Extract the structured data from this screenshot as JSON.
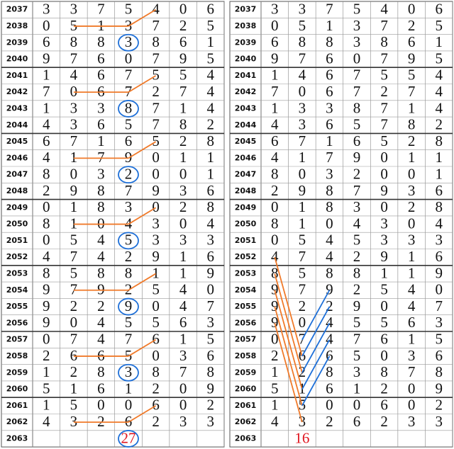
{
  "left": {
    "rows": [
      {
        "id": "2037",
        "digits": [
          3,
          3,
          7,
          5,
          4,
          0,
          6
        ]
      },
      {
        "id": "2038",
        "digits": [
          0,
          5,
          1,
          3,
          7,
          2,
          5
        ]
      },
      {
        "id": "2039",
        "digits": [
          6,
          8,
          8,
          3,
          8,
          6,
          1
        ]
      },
      {
        "id": "2040",
        "digits": [
          9,
          7,
          6,
          0,
          7,
          9,
          5
        ]
      },
      {
        "id": "2041",
        "digits": [
          1,
          4,
          6,
          7,
          5,
          5,
          4
        ]
      },
      {
        "id": "2042",
        "digits": [
          7,
          0,
          6,
          7,
          2,
          7,
          4
        ]
      },
      {
        "id": "2043",
        "digits": [
          1,
          3,
          3,
          8,
          7,
          1,
          4
        ]
      },
      {
        "id": "2044",
        "digits": [
          4,
          3,
          6,
          5,
          7,
          8,
          2
        ]
      },
      {
        "id": "2045",
        "digits": [
          6,
          7,
          1,
          6,
          5,
          2,
          8
        ]
      },
      {
        "id": "2046",
        "digits": [
          4,
          1,
          7,
          9,
          0,
          1,
          1
        ]
      },
      {
        "id": "2047",
        "digits": [
          8,
          0,
          3,
          2,
          0,
          0,
          1
        ]
      },
      {
        "id": "2048",
        "digits": [
          2,
          9,
          8,
          7,
          9,
          3,
          6
        ]
      },
      {
        "id": "2049",
        "digits": [
          0,
          1,
          8,
          3,
          0,
          2,
          8
        ]
      },
      {
        "id": "2050",
        "digits": [
          8,
          1,
          0,
          4,
          3,
          0,
          4
        ]
      },
      {
        "id": "2051",
        "digits": [
          0,
          5,
          4,
          5,
          3,
          3,
          3
        ]
      },
      {
        "id": "2052",
        "digits": [
          4,
          7,
          4,
          2,
          9,
          1,
          6
        ]
      },
      {
        "id": "2053",
        "digits": [
          8,
          5,
          8,
          8,
          1,
          1,
          9
        ]
      },
      {
        "id": "2054",
        "digits": [
          9,
          7,
          9,
          2,
          5,
          4,
          0
        ]
      },
      {
        "id": "2055",
        "digits": [
          9,
          2,
          2,
          9,
          0,
          4,
          7
        ]
      },
      {
        "id": "2056",
        "digits": [
          9,
          0,
          4,
          5,
          5,
          6,
          3
        ]
      },
      {
        "id": "2057",
        "digits": [
          0,
          7,
          4,
          7,
          6,
          1,
          5
        ]
      },
      {
        "id": "2058",
        "digits": [
          2,
          6,
          6,
          5,
          0,
          3,
          6
        ]
      },
      {
        "id": "2059",
        "digits": [
          1,
          2,
          8,
          3,
          8,
          7,
          8
        ]
      },
      {
        "id": "2060",
        "digits": [
          5,
          1,
          6,
          1,
          2,
          0,
          9
        ]
      },
      {
        "id": "2061",
        "digits": [
          1,
          5,
          0,
          0,
          6,
          0,
          2
        ]
      },
      {
        "id": "2062",
        "digits": [
          4,
          3,
          2,
          6,
          2,
          3,
          3
        ]
      },
      {
        "id": "2063",
        "digits": [
          null,
          null,
          null,
          27,
          null,
          null,
          null
        ]
      }
    ]
  },
  "right": {
    "rows": [
      {
        "id": "2037",
        "digits": [
          3,
          3,
          7,
          5,
          4,
          0,
          6
        ]
      },
      {
        "id": "2038",
        "digits": [
          0,
          5,
          1,
          3,
          7,
          2,
          5
        ]
      },
      {
        "id": "2039",
        "digits": [
          6,
          8,
          8,
          3,
          8,
          6,
          1
        ]
      },
      {
        "id": "2040",
        "digits": [
          9,
          7,
          6,
          0,
          7,
          9,
          5
        ]
      },
      {
        "id": "2041",
        "digits": [
          1,
          4,
          6,
          7,
          5,
          5,
          4
        ]
      },
      {
        "id": "2042",
        "digits": [
          7,
          0,
          6,
          7,
          2,
          7,
          4
        ]
      },
      {
        "id": "2043",
        "digits": [
          1,
          3,
          3,
          8,
          7,
          1,
          4
        ]
      },
      {
        "id": "2044",
        "digits": [
          4,
          3,
          6,
          5,
          7,
          8,
          2
        ]
      },
      {
        "id": "2045",
        "digits": [
          6,
          7,
          1,
          6,
          5,
          2,
          8
        ]
      },
      {
        "id": "2046",
        "digits": [
          4,
          1,
          7,
          9,
          0,
          1,
          1
        ]
      },
      {
        "id": "2047",
        "digits": [
          8,
          0,
          3,
          2,
          0,
          0,
          1
        ]
      },
      {
        "id": "2048",
        "digits": [
          2,
          9,
          8,
          7,
          9,
          3,
          6
        ]
      },
      {
        "id": "2049",
        "digits": [
          0,
          1,
          8,
          3,
          0,
          2,
          8
        ]
      },
      {
        "id": "2050",
        "digits": [
          8,
          1,
          0,
          4,
          3,
          0,
          4
        ]
      },
      {
        "id": "2051",
        "digits": [
          0,
          5,
          4,
          5,
          3,
          3,
          3
        ]
      },
      {
        "id": "2052",
        "digits": [
          4,
          7,
          4,
          2,
          9,
          1,
          6
        ]
      },
      {
        "id": "2053",
        "digits": [
          8,
          5,
          8,
          8,
          1,
          1,
          9
        ]
      },
      {
        "id": "2054",
        "digits": [
          9,
          7,
          9,
          2,
          5,
          4,
          0
        ]
      },
      {
        "id": "2055",
        "digits": [
          9,
          2,
          2,
          9,
          0,
          4,
          7
        ]
      },
      {
        "id": "2056",
        "digits": [
          9,
          0,
          4,
          5,
          5,
          6,
          3
        ]
      },
      {
        "id": "2057",
        "digits": [
          0,
          7,
          4,
          7,
          6,
          1,
          5
        ]
      },
      {
        "id": "2058",
        "digits": [
          2,
          6,
          6,
          5,
          0,
          3,
          6
        ]
      },
      {
        "id": "2059",
        "digits": [
          1,
          2,
          8,
          3,
          8,
          7,
          8
        ]
      },
      {
        "id": "2060",
        "digits": [
          5,
          1,
          6,
          1,
          2,
          0,
          9
        ]
      },
      {
        "id": "2061",
        "digits": [
          1,
          5,
          0,
          0,
          6,
          0,
          2
        ]
      },
      {
        "id": "2062",
        "digits": [
          4,
          3,
          2,
          6,
          2,
          3,
          3
        ]
      },
      {
        "id": "2063",
        "digits": [
          null,
          16,
          null,
          null,
          null,
          null,
          null
        ]
      }
    ]
  }
}
